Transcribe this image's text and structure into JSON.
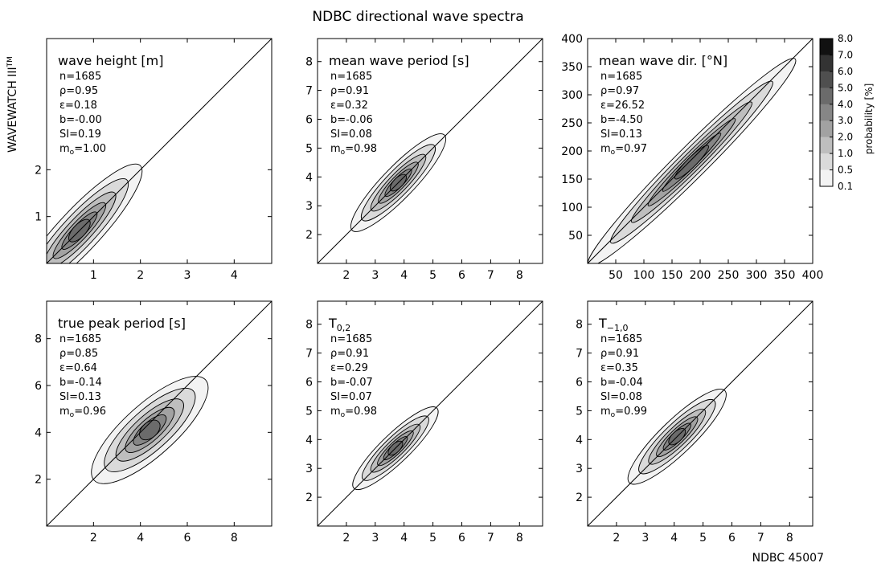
{
  "figure": {
    "title": "NDBC directional wave spectra",
    "ylabel": "WAVEWATCH III",
    "ylabel_sup": "TM",
    "xlabel": "NDBC 45007"
  },
  "colorbar": {
    "label": "probability [%]",
    "ticks": [
      "8.0",
      "7.0",
      "6.0",
      "5.0",
      "4.0",
      "3.0",
      "2.0",
      "1.0",
      "0.5",
      "0.1"
    ],
    "colors": [
      "#111111",
      "#333333",
      "#4f4f4f",
      "#6b6b6b",
      "#868686",
      "#a2a2a2",
      "#bebebe",
      "#dadada",
      "#f3f3f3"
    ]
  },
  "chart_data": [
    {
      "type": "heatmap",
      "title": "wave height [m]",
      "title_sub": "",
      "xlim": [
        0,
        4.8
      ],
      "ylim": [
        0,
        4.8
      ],
      "xticks": [
        1,
        2,
        3,
        4
      ],
      "yticks": [
        1,
        2
      ],
      "x_tick_labels": [
        "1",
        "2",
        "3",
        "4"
      ],
      "y_tick_labels": [
        "1",
        "2"
      ],
      "stats": [
        "n=1685",
        "ρ=0.95",
        "ε=0.18",
        "b=-0.00",
        "SI=0.19"
      ],
      "mo_label": "m",
      "mo_sub": "o",
      "mo_value": "=1.00",
      "center": [
        0.7,
        0.7
      ],
      "length": 1.9,
      "width": 0.45,
      "rot": 47
    },
    {
      "type": "heatmap",
      "title": "mean wave period [s]",
      "title_sub": "",
      "xlim": [
        1,
        8.8
      ],
      "ylim": [
        1,
        8.8
      ],
      "xticks": [
        2,
        3,
        4,
        5,
        6,
        7,
        8
      ],
      "yticks": [
        2,
        3,
        4,
        5,
        6,
        7,
        8
      ],
      "x_tick_labels": [
        "2",
        "3",
        "4",
        "5",
        "6",
        "7",
        "8"
      ],
      "y_tick_labels": [
        "2",
        "3",
        "4",
        "5",
        "6",
        "7",
        "8"
      ],
      "stats": [
        "n=1685",
        "ρ=0.91",
        "ε=0.32",
        "b=-0.06",
        "SI=0.08"
      ],
      "mo_label": "m",
      "mo_sub": "o",
      "mo_value": "=0.98",
      "center": [
        3.8,
        3.8
      ],
      "length": 2.3,
      "width": 0.55,
      "rot": 46
    },
    {
      "type": "heatmap",
      "title": "mean wave dir. [°N]",
      "title_sub": "",
      "xlim": [
        0,
        400
      ],
      "ylim": [
        0,
        400
      ],
      "xticks": [
        50,
        100,
        150,
        200,
        250,
        300,
        350,
        400
      ],
      "yticks": [
        50,
        100,
        150,
        200,
        250,
        300,
        350,
        400
      ],
      "x_tick_labels": [
        "50",
        "100",
        "150",
        "200",
        "250",
        "300",
        "350",
        "400"
      ],
      "y_tick_labels": [
        "50",
        "100",
        "150",
        "200",
        "250",
        "300",
        "350",
        "400"
      ],
      "stats": [
        "n=1685",
        "ρ=0.97",
        "ε=26.52",
        "b=-4.50",
        "SI=0.13"
      ],
      "mo_label": "m",
      "mo_sub": "o",
      "mo_value": "=0.97",
      "center": [
        185,
        180
      ],
      "length": 260,
      "width": 28,
      "rot": 45
    },
    {
      "type": "heatmap",
      "title": "true peak period [s]",
      "title_sub": "",
      "xlim": [
        0,
        9.6
      ],
      "ylim": [
        0,
        9.6
      ],
      "xticks": [
        2,
        4,
        6,
        8
      ],
      "yticks": [
        2,
        4,
        6,
        8
      ],
      "x_tick_labels": [
        "2",
        "4",
        "6",
        "8"
      ],
      "y_tick_labels": [
        "2",
        "4",
        "6",
        "8"
      ],
      "stats": [
        "n=1685",
        "ρ=0.85",
        "ε=0.64",
        "b=-0.14",
        "SI=0.13"
      ],
      "mo_label": "m",
      "mo_sub": "o",
      "mo_value": "=0.96",
      "center": [
        4.4,
        4.1
      ],
      "length": 3.2,
      "width": 1.1,
      "rot": 42
    },
    {
      "type": "heatmap",
      "title": "T",
      "title_sub": "0,2",
      "xlim": [
        1,
        8.8
      ],
      "ylim": [
        1,
        8.8
      ],
      "xticks": [
        2,
        3,
        4,
        5,
        6,
        7,
        8
      ],
      "yticks": [
        2,
        3,
        4,
        5,
        6,
        7,
        8
      ],
      "x_tick_labels": [
        "2",
        "3",
        "4",
        "5",
        "6",
        "7",
        "8"
      ],
      "y_tick_labels": [
        "2",
        "3",
        "4",
        "5",
        "6",
        "7",
        "8"
      ],
      "stats": [
        "n=1685",
        "ρ=0.91",
        "ε=0.29",
        "b=-0.07",
        "SI=0.07"
      ],
      "mo_label": "m",
      "mo_sub": "o",
      "mo_value": "=0.98",
      "center": [
        3.7,
        3.7
      ],
      "length": 2.0,
      "width": 0.5,
      "rot": 44
    },
    {
      "type": "heatmap",
      "title": "T",
      "title_sub": "−1,0",
      "xlim": [
        1,
        8.8
      ],
      "ylim": [
        1,
        8.8
      ],
      "xticks": [
        2,
        3,
        4,
        5,
        6,
        7,
        8
      ],
      "yticks": [
        2,
        3,
        4,
        5,
        6,
        7,
        8
      ],
      "x_tick_labels": [
        "2",
        "3",
        "4",
        "5",
        "6",
        "7",
        "8"
      ],
      "y_tick_labels": [
        "2",
        "3",
        "4",
        "5",
        "6",
        "7",
        "8"
      ],
      "stats": [
        "n=1685",
        "ρ=0.91",
        "ε=0.35",
        "b=-0.04",
        "SI=0.08"
      ],
      "mo_label": "m",
      "mo_sub": "o",
      "mo_value": "=0.99",
      "center": [
        4.1,
        4.1
      ],
      "length": 2.3,
      "width": 0.58,
      "rot": 44
    }
  ]
}
